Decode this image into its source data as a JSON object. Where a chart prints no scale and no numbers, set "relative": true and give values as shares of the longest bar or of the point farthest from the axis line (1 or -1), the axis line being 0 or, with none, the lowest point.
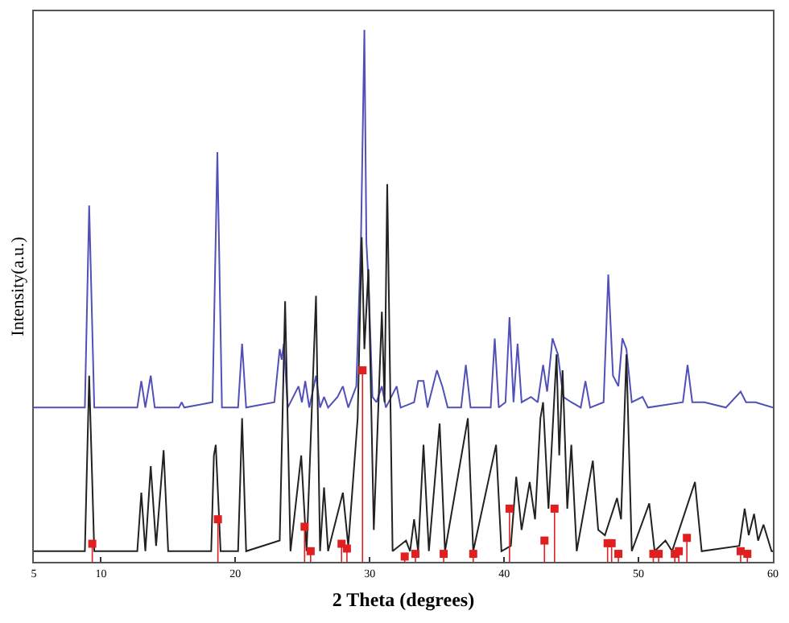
{
  "chart_data": {
    "type": "line",
    "xlabel": "2 Theta (degrees)",
    "ylabel": "Intensity(a.u.)",
    "relative": true,
    "xlim": [
      5,
      60
    ],
    "xticks": [
      5,
      10,
      20,
      30,
      40,
      50,
      60
    ],
    "tick_labels": "x",
    "series": [
      {
        "color": "#5050b8",
        "x": [
          5,
          8.8,
          9.12,
          9.5,
          12.7,
          13.0,
          13.3,
          13.7,
          14.0,
          15.8,
          16.0,
          16.2,
          18.3,
          18.66,
          19.0,
          20.2,
          20.5,
          20.8,
          22.9,
          23.3,
          23.45,
          23.6,
          23.9,
          24.7,
          24.95,
          25.2,
          25.5,
          26.0,
          26.3,
          26.6,
          26.9,
          27.6,
          28.0,
          28.4,
          29.0,
          29.35,
          29.6,
          29.75,
          29.9,
          30.2,
          30.5,
          30.9,
          31.2,
          32.0,
          32.3,
          33.3,
          33.6,
          34.0,
          34.3,
          35.0,
          35.4,
          35.8,
          36.8,
          37.15,
          37.5,
          39.0,
          39.3,
          39.6,
          40.1,
          40.4,
          40.7,
          41.0,
          41.3,
          42.0,
          42.5,
          42.9,
          43.2,
          43.6,
          44.0,
          44.4,
          45.0,
          45.7,
          46.05,
          46.4,
          47.4,
          47.75,
          48.1,
          48.5,
          48.8,
          49.1,
          49.5,
          50.3,
          50.7,
          53.3,
          53.65,
          54.0,
          54.9,
          56.5,
          57.6,
          58.0,
          58.7,
          60
        ],
        "values": [
          0.29,
          0.29,
          0.67,
          0.29,
          0.29,
          0.34,
          0.29,
          0.35,
          0.29,
          0.29,
          0.3,
          0.29,
          0.3,
          0.77,
          0.29,
          0.29,
          0.41,
          0.29,
          0.3,
          0.4,
          0.38,
          0.41,
          0.29,
          0.33,
          0.3,
          0.34,
          0.29,
          0.35,
          0.29,
          0.31,
          0.29,
          0.31,
          0.33,
          0.29,
          0.33,
          0.61,
          1.0,
          0.6,
          0.53,
          0.31,
          0.3,
          0.33,
          0.29,
          0.33,
          0.29,
          0.3,
          0.34,
          0.34,
          0.29,
          0.36,
          0.33,
          0.29,
          0.29,
          0.37,
          0.29,
          0.29,
          0.42,
          0.29,
          0.3,
          0.46,
          0.3,
          0.41,
          0.3,
          0.31,
          0.3,
          0.37,
          0.32,
          0.42,
          0.39,
          0.31,
          0.3,
          0.29,
          0.34,
          0.29,
          0.3,
          0.54,
          0.35,
          0.33,
          0.42,
          0.4,
          0.3,
          0.31,
          0.29,
          0.3,
          0.37,
          0.3,
          0.3,
          0.29,
          0.32,
          0.3,
          0.3,
          0.29
        ]
      },
      {
        "color": "#222222",
        "x": [
          5,
          8.8,
          9.12,
          9.5,
          12.7,
          13.0,
          13.3,
          13.7,
          14.1,
          14.66,
          15.0,
          18.2,
          18.4,
          18.54,
          18.9,
          20.2,
          20.5,
          20.8,
          23.3,
          23.7,
          24.1,
          24.9,
          25.3,
          26.0,
          26.3,
          26.6,
          26.9,
          28.0,
          28.4,
          29.1,
          29.4,
          29.6,
          29.9,
          30.3,
          30.9,
          31.1,
          31.3,
          31.7,
          32.7,
          33.0,
          33.3,
          33.6,
          34.0,
          34.4,
          35.2,
          35.6,
          37.3,
          37.7,
          39.4,
          39.8,
          40.5,
          40.9,
          41.3,
          41.9,
          42.3,
          42.7,
          42.9,
          43.3,
          43.9,
          44.1,
          44.35,
          44.7,
          45.0,
          45.4,
          46.6,
          47.0,
          47.5,
          48.4,
          48.7,
          49.1,
          49.5,
          50.8,
          51.2,
          52.0,
          52.5,
          54.2,
          54.7,
          57.5,
          57.9,
          58.2,
          58.6,
          58.9,
          59.3,
          59.9,
          60
        ],
        "values": [
          0.02,
          0.02,
          0.35,
          0.02,
          0.02,
          0.13,
          0.02,
          0.18,
          0.03,
          0.21,
          0.02,
          0.02,
          0.2,
          0.22,
          0.02,
          0.02,
          0.27,
          0.02,
          0.04,
          0.49,
          0.02,
          0.2,
          0.02,
          0.5,
          0.02,
          0.14,
          0.02,
          0.13,
          0.03,
          0.27,
          0.61,
          0.4,
          0.55,
          0.06,
          0.47,
          0.3,
          0.71,
          0.02,
          0.04,
          0.02,
          0.08,
          0.02,
          0.22,
          0.02,
          0.26,
          0.02,
          0.27,
          0.02,
          0.22,
          0.02,
          0.03,
          0.16,
          0.06,
          0.15,
          0.08,
          0.27,
          0.3,
          0.1,
          0.39,
          0.2,
          0.36,
          0.1,
          0.22,
          0.02,
          0.19,
          0.06,
          0.05,
          0.12,
          0.08,
          0.39,
          0.02,
          0.11,
          0.02,
          0.04,
          0.02,
          0.15,
          0.02,
          0.03,
          0.1,
          0.05,
          0.09,
          0.04,
          0.07,
          0.02,
          0.02
        ]
      },
      {
        "type": "lollipop",
        "color": "#e02020",
        "marker": "square",
        "x": [
          9.35,
          18.7,
          25.15,
          25.6,
          27.9,
          28.3,
          29.46,
          32.6,
          33.4,
          35.5,
          37.7,
          40.4,
          43.0,
          43.75,
          47.7,
          48.0,
          48.5,
          51.1,
          51.5,
          52.7,
          53.0,
          53.6,
          57.6,
          58.1
        ],
        "values": [
          0.034,
          0.08,
          0.066,
          0.02,
          0.034,
          0.025,
          0.36,
          0.01,
          0.015,
          0.015,
          0.015,
          0.1,
          0.04,
          0.1,
          0.035,
          0.035,
          0.015,
          0.015,
          0.015,
          0.015,
          0.02,
          0.045,
          0.02,
          0.015
        ]
      }
    ]
  }
}
